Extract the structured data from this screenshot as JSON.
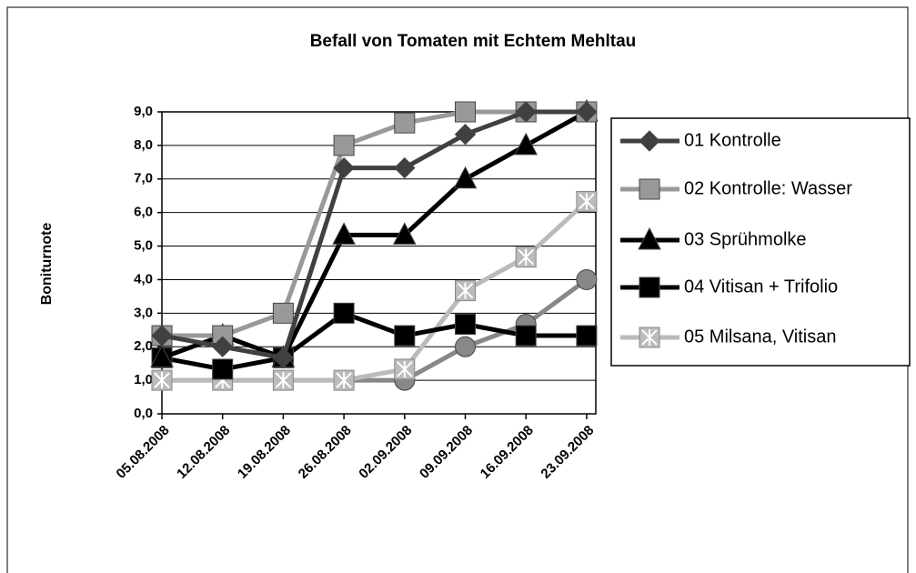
{
  "chart_data": {
    "type": "line",
    "title": "Befall von Tomaten mit Echtem Mehltau",
    "y_label": "Boniturnote",
    "categories": [
      "05.08.2008",
      "12.08.2008",
      "19.08.2008",
      "26.08.2008",
      "02.09.2008",
      "09.09.2008",
      "16.09.2008",
      "23.09.2008"
    ],
    "ylim": [
      0,
      9
    ],
    "yticks": [
      {
        "value": 0,
        "label": "0,0"
      },
      {
        "value": 1,
        "label": "1,0"
      },
      {
        "value": 2,
        "label": "2,0"
      },
      {
        "value": 3,
        "label": "3,0"
      },
      {
        "value": 4,
        "label": "4,0"
      },
      {
        "value": 5,
        "label": "5,0"
      },
      {
        "value": 6,
        "label": "6,0"
      },
      {
        "value": 7,
        "label": "7,0"
      },
      {
        "value": 8,
        "label": "8,0"
      },
      {
        "value": 9,
        "label": "9,0"
      }
    ],
    "grid": true,
    "legend": "right",
    "series": [
      {
        "name": "01 Kontrolle",
        "color": "#404040",
        "marker": "diamond",
        "values": [
          2.33,
          2.0,
          1.67,
          7.33,
          7.33,
          8.33,
          9.0,
          9.0
        ]
      },
      {
        "name": "02 Kontrolle: Wasser",
        "color": "#999999",
        "marker": "square",
        "values": [
          2.33,
          2.33,
          3.0,
          8.0,
          8.67,
          9.0,
          9.0,
          9.0
        ]
      },
      {
        "name": "03 Sprühmolke",
        "color": "#000000",
        "marker": "triangle",
        "values": [
          1.67,
          2.33,
          1.67,
          5.33,
          5.33,
          7.0,
          8.0,
          9.0
        ]
      },
      {
        "name": "04 Vitisan + Trifolio",
        "color": "#000000",
        "marker": "square",
        "values": [
          1.67,
          1.33,
          1.67,
          3.0,
          2.33,
          2.67,
          2.33,
          2.33
        ]
      },
      {
        "name": "05 Milsana, Vitisan",
        "color": "#bbbbbb",
        "marker": "star",
        "values": [
          1.0,
          1.0,
          1.0,
          1.0,
          1.33,
          3.67,
          4.67,
          6.33
        ]
      },
      {
        "color": "#888888",
        "marker": "circle",
        "values": [
          1.0,
          1.0,
          1.0,
          1.0,
          1.0,
          2.0,
          2.67,
          4.0
        ]
      }
    ]
  }
}
